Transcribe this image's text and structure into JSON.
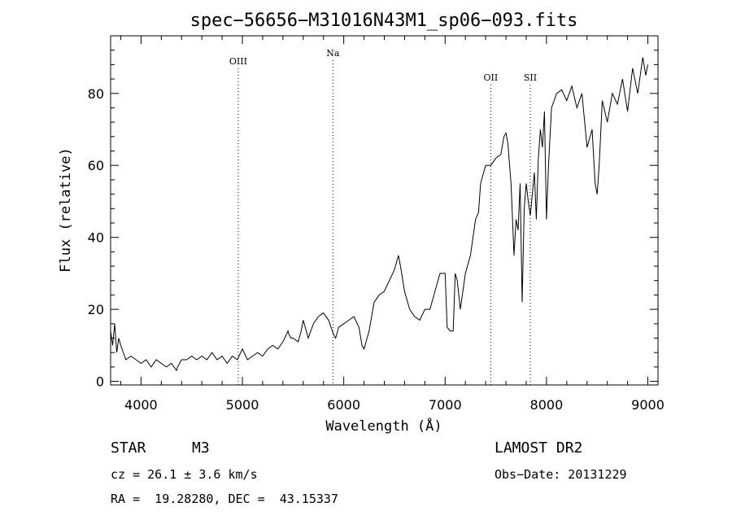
{
  "chart_data": {
    "type": "line",
    "title": "spec−56656−M31016N43M1_sp06−093.fits",
    "xlabel": "Wavelength (Å)",
    "ylabel": "Flux (relative)",
    "xlim": [
      3700,
      9100
    ],
    "ylim": [
      -1,
      96
    ],
    "x_ticks": [
      4000,
      5000,
      6000,
      7000,
      8000,
      9000
    ],
    "y_ticks": [
      0,
      20,
      40,
      60,
      80
    ],
    "grid": false,
    "spectral_lines": [
      {
        "name": "OIII",
        "x": 4959
      },
      {
        "name": "Na",
        "x": 5893
      },
      {
        "name": "OII",
        "x": 7450
      },
      {
        "name": "SII",
        "x": 7840
      }
    ],
    "series": [
      {
        "x": [
          3700,
          3720,
          3740,
          3760,
          3780,
          3800,
          3850,
          3900,
          3950,
          4000,
          4050,
          4100,
          4150,
          4200,
          4250,
          4300,
          4350,
          4360,
          4380,
          4400,
          4450,
          4500,
          4550,
          4600,
          4650,
          4700,
          4750,
          4800,
          4850,
          4900,
          4950,
          5000,
          5050,
          5100,
          5150,
          5200,
          5250,
          5300,
          5350,
          5400,
          5450,
          5460,
          5480,
          5500,
          5550,
          5580,
          5600,
          5620,
          5650,
          5700,
          5750,
          5800,
          5850,
          5900,
          5920,
          5950,
          6000,
          6050,
          6100,
          6150,
          6180,
          6200,
          6250,
          6300,
          6350,
          6400,
          6450,
          6500,
          6540,
          6560,
          6600,
          6650,
          6700,
          6750,
          6800,
          6850,
          6900,
          6950,
          7000,
          7020,
          7050,
          7080,
          7100,
          7120,
          7150,
          7200,
          7250,
          7300,
          7330,
          7350,
          7400,
          7450,
          7500,
          7550,
          7580,
          7600,
          7620,
          7650,
          7680,
          7700,
          7720,
          7740,
          7760,
          7780,
          7800,
          7820,
          7840,
          7860,
          7880,
          7900,
          7920,
          7940,
          7960,
          7980,
          8000,
          8020,
          8050,
          8100,
          8150,
          8200,
          8250,
          8300,
          8350,
          8400,
          8450,
          8480,
          8500,
          8520,
          8550,
          8600,
          8650,
          8700,
          8750,
          8800,
          8850,
          8900,
          8950,
          8980,
          9000
        ],
        "y": [
          14,
          10,
          16,
          8,
          12,
          10,
          6,
          7,
          6,
          5,
          6,
          4,
          6,
          5,
          4,
          5,
          3,
          4,
          5,
          6,
          6,
          7,
          6,
          7,
          6,
          8,
          6,
          7,
          5,
          7,
          6,
          9,
          6,
          7,
          8,
          7,
          9,
          10,
          9,
          11,
          14,
          13,
          12,
          12,
          11,
          14,
          17,
          15,
          12,
          16,
          18,
          19,
          17,
          13,
          12,
          15,
          16,
          17,
          18,
          15,
          10,
          9,
          14,
          22,
          24,
          25,
          28,
          31,
          35,
          32,
          25,
          20,
          18,
          17,
          20,
          20,
          25,
          30,
          30,
          15,
          14,
          14,
          30,
          28,
          20,
          30,
          35,
          45,
          47,
          55,
          60,
          60,
          62,
          63,
          68,
          69,
          66,
          55,
          35,
          45,
          42,
          55,
          22,
          48,
          55,
          50,
          46,
          52,
          58,
          45,
          62,
          70,
          65,
          75,
          45,
          60,
          76,
          80,
          81,
          78,
          82,
          76,
          80,
          65,
          70,
          55,
          52,
          60,
          78,
          72,
          80,
          77,
          84,
          75,
          87,
          80,
          90,
          85,
          88
        ]
      }
    ]
  },
  "info": {
    "object_class": "STAR",
    "subclass": "M3",
    "survey": "LAMOST DR2",
    "cz": "cz = 26.1 ± 3.6 km/s",
    "obs_date": "Obs−Date: 20131229",
    "coords": "RA =  19.28280, DEC =  43.15337"
  }
}
